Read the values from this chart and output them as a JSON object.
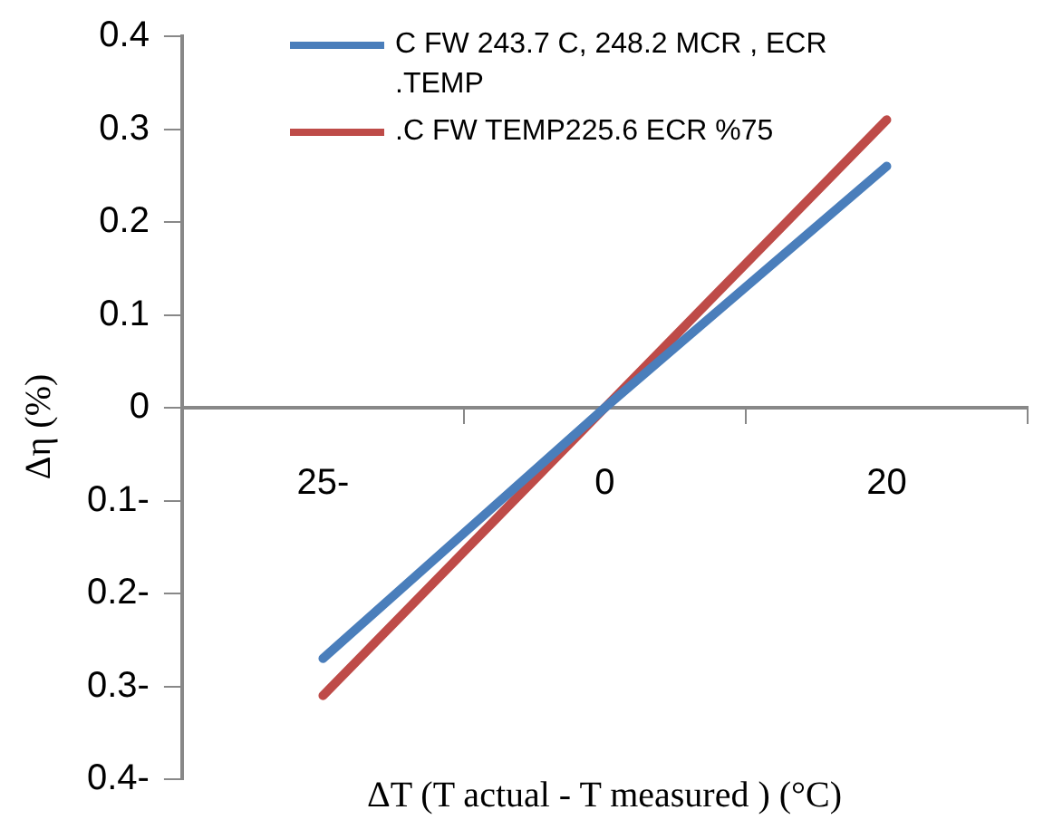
{
  "chart_data": {
    "type": "line",
    "xlabel": "ΔT (T actual  - T measured ) (°C)",
    "ylabel": "Δη (%)",
    "categories": [
      "25-",
      "0",
      "20"
    ],
    "series": [
      {
        "name": "C FW 243.7 C, 248.2 MCR , ECR .TEMP",
        "color": "#4a7ebb",
        "values": [
          -0.27,
          0,
          0.26
        ]
      },
      {
        "name": ".C FW TEMP225.6 ECR  %75",
        "color": "#be4b48",
        "values": [
          -0.31,
          0,
          0.31
        ]
      }
    ],
    "ylim": [
      -0.4,
      0.4
    ],
    "yticks": [
      0.4,
      0.3,
      0.2,
      0.1,
      0,
      {
        "value": -0.1,
        "label": "0.1-"
      },
      {
        "value": -0.2,
        "label": "0.2-"
      },
      {
        "value": -0.3,
        "label": "0.3-"
      },
      {
        "value": -0.4,
        "label": "0.4-"
      }
    ],
    "grid": false,
    "legend": "top",
    "marker": "none",
    "line_style": "solid"
  }
}
